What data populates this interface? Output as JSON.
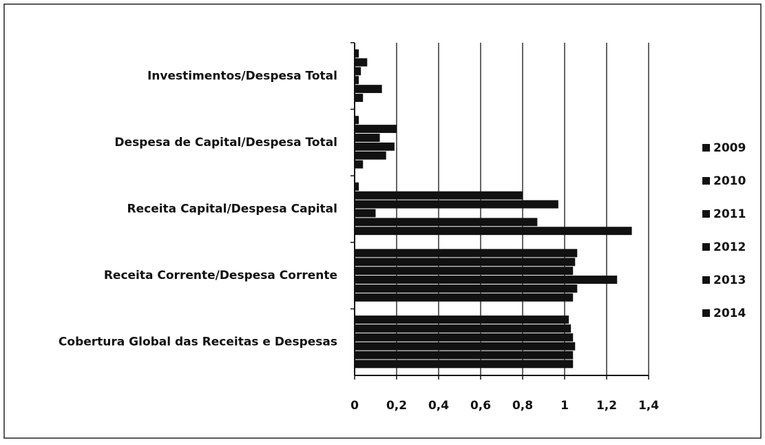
{
  "chart_data": {
    "type": "bar",
    "orientation": "horizontal",
    "categories": [
      "Investimentos/Despesa Total",
      "Despesa de Capital/Despesa Total",
      "Receita Capital/Despesa Capital",
      "Receita Corrente/Despesa  Corrente",
      "Cobertura Global das Receitas e Despesas"
    ],
    "series": [
      {
        "name": "2009",
        "color": "#111111",
        "values": [
          0.04,
          0.04,
          1.32,
          1.04,
          1.04
        ]
      },
      {
        "name": "2010",
        "color": "#111111",
        "values": [
          0.13,
          0.15,
          0.87,
          1.06,
          1.04
        ]
      },
      {
        "name": "2011",
        "color": "#111111",
        "values": [
          0.02,
          0.19,
          0.1,
          1.25,
          1.05
        ]
      },
      {
        "name": "2012",
        "color": "#111111",
        "values": [
          0.03,
          0.12,
          0.97,
          1.04,
          1.04
        ]
      },
      {
        "name": "2013",
        "color": "#111111",
        "values": [
          0.06,
          0.2,
          0.8,
          1.05,
          1.03
        ]
      },
      {
        "name": "2014",
        "color": "#111111",
        "values": [
          0.02,
          0.02,
          0.02,
          1.06,
          1.02
        ]
      }
    ],
    "xlim": [
      0,
      1.4
    ],
    "xticks": [
      0,
      {
        "value": 0.2,
        "label": "0,2"
      },
      {
        "value": 0.4,
        "label": "0,4"
      },
      {
        "value": 0.6,
        "label": "0,6"
      },
      {
        "value": 0.8,
        "label": "0,8"
      },
      1,
      {
        "value": 1.2,
        "label": "1,2"
      },
      {
        "value": 1.4,
        "label": "1,4"
      }
    ],
    "grid": true,
    "legend": "right"
  }
}
